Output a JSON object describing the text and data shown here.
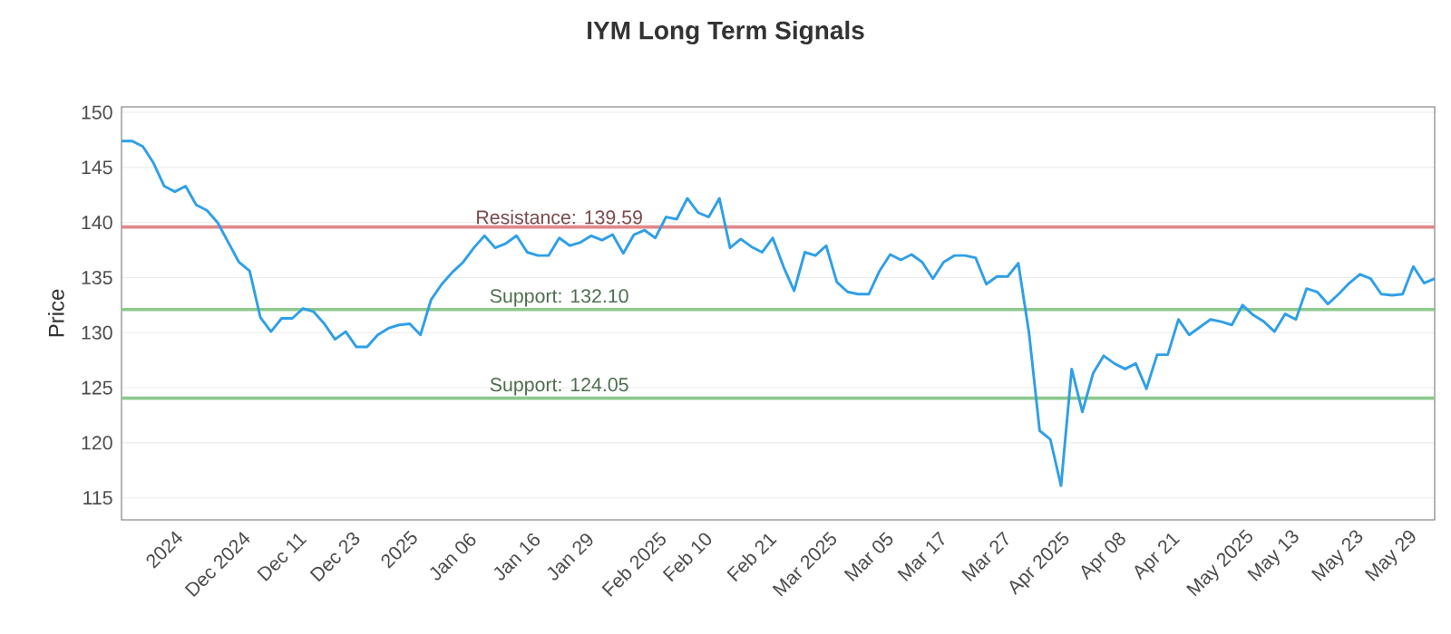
{
  "chart_data": {
    "type": "line",
    "title": "IYM Long Term Signals",
    "ylabel": "Price",
    "categories": [
      null,
      null,
      null,
      null,
      "2024",
      null,
      null,
      null,
      null,
      "Dec 2024",
      null,
      null,
      null,
      null,
      null,
      "Dec 11",
      null,
      null,
      null,
      null,
      "Dec 23",
      null,
      null,
      null,
      null,
      null,
      "2025",
      null,
      null,
      null,
      null,
      "Jan 06",
      null,
      null,
      null,
      null,
      null,
      "Jan 16",
      null,
      null,
      null,
      null,
      "Jan 29",
      null,
      null,
      null,
      null,
      null,
      "Feb 2025",
      null,
      null,
      null,
      null,
      "Feb 10",
      null,
      null,
      null,
      null,
      null,
      "Feb 21",
      null,
      null,
      null,
      null,
      "Mar 2025",
      null,
      null,
      null,
      null,
      null,
      "Mar 05",
      null,
      null,
      null,
      null,
      "Mar 17",
      null,
      null,
      null,
      null,
      null,
      "Mar 27",
      null,
      null,
      null,
      null,
      "Apr 2025",
      null,
      null,
      null,
      null,
      null,
      "Apr 08",
      null,
      null,
      null,
      null,
      "Apr 21",
      null,
      null,
      null,
      null,
      null,
      "May 2025",
      null,
      null,
      null,
      null,
      "May 13",
      null,
      null,
      null,
      null,
      null,
      "May 23",
      null,
      null,
      null,
      null,
      "May 29",
      null,
      null,
      null,
      null
    ],
    "series": [
      {
        "color": "#2f9fe8",
        "values": [
          147.4,
          147.4,
          146.9,
          145.4,
          143.3,
          142.8,
          143.3,
          141.6,
          141.1,
          140.0,
          138.2,
          136.4,
          135.6,
          131.4,
          130.1,
          131.3,
          131.3,
          132.2,
          131.9,
          130.8,
          129.4,
          130.1,
          128.7,
          128.7,
          129.8,
          130.4,
          130.7,
          130.8,
          129.8,
          133.0,
          134.4,
          135.5,
          136.4,
          137.7,
          138.8,
          137.7,
          138.1,
          138.8,
          137.3,
          137.0,
          137.0,
          138.6,
          137.9,
          138.2,
          138.8,
          138.4,
          138.9,
          137.2,
          138.9,
          139.3,
          138.6,
          140.5,
          140.3,
          142.2,
          140.9,
          140.5,
          142.2,
          137.7,
          138.5,
          137.8,
          137.3,
          138.6,
          136.0,
          133.8,
          137.3,
          137.0,
          137.9,
          134.6,
          133.7,
          133.5,
          133.5,
          135.6,
          137.1,
          136.6,
          137.1,
          136.4,
          134.9,
          136.4,
          137.0,
          137.0,
          136.8,
          134.4,
          135.1,
          135.1,
          136.3,
          130.0,
          121.1,
          120.3,
          116.1,
          126.7,
          122.8,
          126.3,
          127.9,
          127.2,
          126.7,
          127.2,
          124.9,
          128.0,
          128.0,
          131.2,
          129.8,
          130.5,
          131.2,
          131.0,
          130.7,
          132.5,
          131.6,
          131.0,
          130.1,
          131.7,
          131.2,
          134.0,
          133.7,
          132.6,
          133.5,
          134.5,
          135.3,
          134.9,
          133.5,
          133.4,
          133.5,
          136.0,
          134.5,
          134.9
        ]
      }
    ],
    "ylim": [
      113,
      150.5
    ],
    "yticks": [
      115,
      120,
      125,
      130,
      135,
      140,
      145,
      150
    ],
    "grid": "y",
    "ref_lines": [
      {
        "axis": "y",
        "value": 139.59,
        "label": "Resistance: 139.59",
        "color": "#e0888a"
      },
      {
        "axis": "y",
        "value": 132.1,
        "label": "Support: 132.10",
        "color": "#8cc98c"
      },
      {
        "axis": "y",
        "value": 124.05,
        "label": "Support: 124.05",
        "color": "#8cc98c"
      }
    ]
  }
}
